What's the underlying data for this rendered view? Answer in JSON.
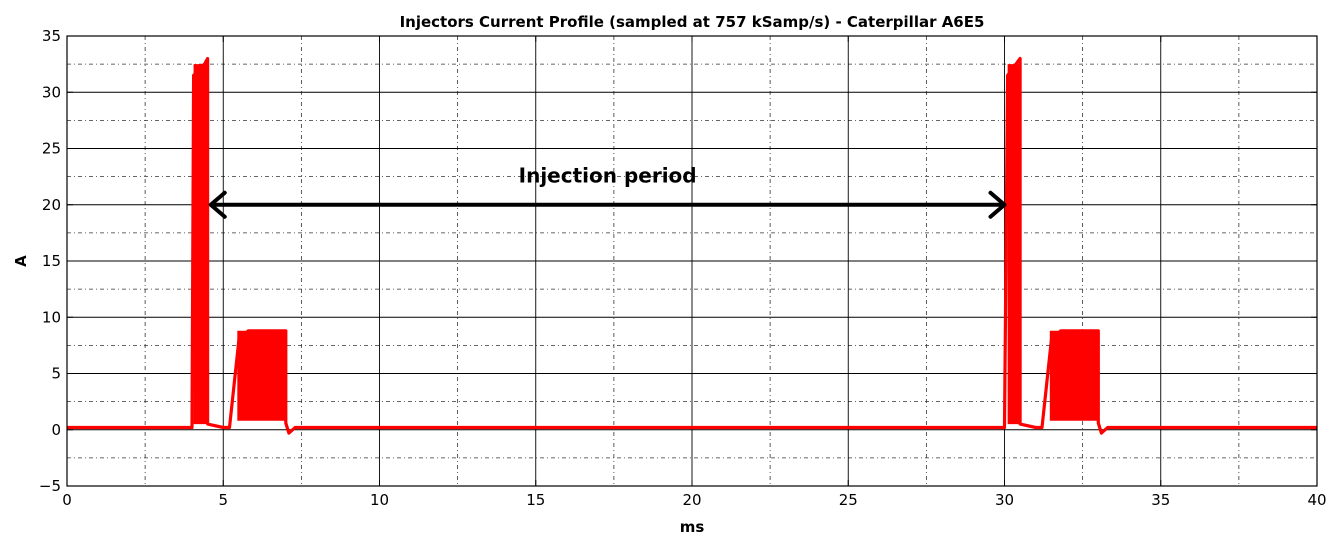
{
  "chart_data": {
    "type": "line",
    "title": "Injectors Current Profile (sampled at 757 kSamp/s) - Caterpillar A6E5",
    "xlabel": "ms",
    "ylabel": "A",
    "xlim": [
      0,
      40
    ],
    "ylim": [
      -5,
      35
    ],
    "xticks": [
      0,
      5,
      10,
      15,
      20,
      25,
      30,
      35,
      40
    ],
    "xtick_labels": [
      "0",
      "5",
      "10",
      "15",
      "20",
      "25",
      "30",
      "35",
      "40"
    ],
    "yticks": [
      -5,
      0,
      5,
      10,
      15,
      20,
      25,
      30,
      35
    ],
    "ytick_labels": [
      "−5",
      "0",
      "5",
      "10",
      "15",
      "20",
      "25",
      "30",
      "35"
    ],
    "grid": true,
    "grid_style": "major solid, minor dash-dot",
    "series": [
      {
        "color": "#ff0000",
        "points": [
          [
            0,
            0.2
          ],
          [
            4.0,
            0.2
          ],
          [
            4.05,
            31.5
          ],
          [
            4.4,
            32.5
          ],
          [
            4.5,
            33.0
          ],
          [
            4.5,
            0.5
          ],
          [
            5.0,
            0.2
          ],
          [
            5.2,
            0.2
          ],
          [
            5.5,
            8.0
          ],
          [
            5.8,
            8.8
          ],
          [
            7.0,
            8.8
          ],
          [
            7.0,
            0.6
          ],
          [
            7.1,
            -0.3
          ],
          [
            7.3,
            0.2
          ],
          [
            30.0,
            0.2
          ],
          [
            30.1,
            31.5
          ],
          [
            30.5,
            33.0
          ],
          [
            30.5,
            0.5
          ],
          [
            31.0,
            0.2
          ],
          [
            31.2,
            0.2
          ],
          [
            31.5,
            8.0
          ],
          [
            31.8,
            8.8
          ],
          [
            33.0,
            8.8
          ],
          [
            33.0,
            0.6
          ],
          [
            33.1,
            -0.3
          ],
          [
            33.3,
            0.2
          ],
          [
            40,
            0.2
          ]
        ],
        "band_segments": [
          {
            "x": [
              4.05,
              4.5
            ],
            "lower": 0.5,
            "upper": 32.5
          },
          {
            "x": [
              5.45,
              7.0
            ],
            "lower": 0.8,
            "upper": 8.8
          },
          {
            "x": [
              30.1,
              30.5
            ],
            "lower": 0.5,
            "upper": 32.5
          },
          {
            "x": [
              31.45,
              33.0
            ],
            "lower": 0.8,
            "upper": 8.8
          }
        ]
      }
    ],
    "annotations": [
      {
        "text": "Injection period",
        "type": "double-arrow",
        "x_start": 4.6,
        "x_end": 30.0,
        "y": 20,
        "text_x": 17.3,
        "text_y": 22
      }
    ]
  }
}
